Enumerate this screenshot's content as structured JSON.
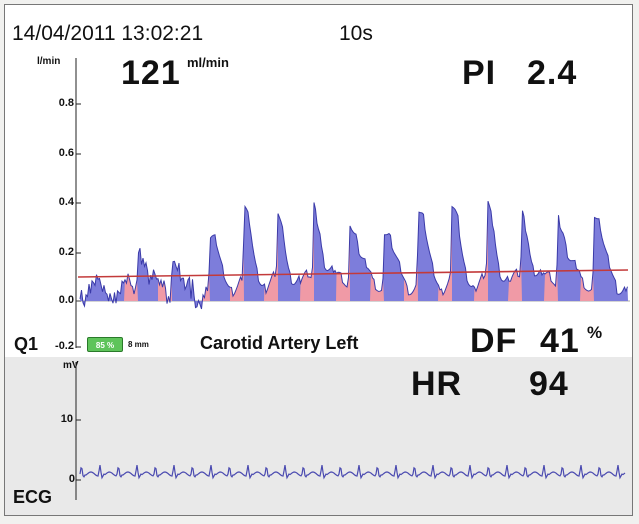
{
  "header": {
    "datetime": "14/04/2011 13:02:21",
    "sweep": "10s"
  },
  "flow": {
    "unit": "l/min",
    "value": "121",
    "value_unit": "ml/min",
    "pi_label": "PI",
    "pi_value": "2.4",
    "ticks": [
      "0.8",
      "0.6",
      "0.4",
      "0.2",
      "0.0",
      "-0.2"
    ]
  },
  "probe": {
    "channel": "Q1",
    "quality": "85 %",
    "size": "8 mm",
    "location": "Carotid Artery Left"
  },
  "df": {
    "label": "DF",
    "value": "41",
    "unit": "%"
  },
  "ecg": {
    "unit": "mV",
    "hr_label": "HR",
    "hr_value": "94",
    "ticks": [
      "10",
      "0"
    ],
    "label": "ECG"
  },
  "colors": {
    "flow_fill": "#7d7ddb",
    "flow_line": "#3a3aa8",
    "positive_fill": "#f09aa6",
    "mean_line": "#c33a3a",
    "ecg_line": "#4a4ab0",
    "quality_green": "#5ec45a"
  }
}
